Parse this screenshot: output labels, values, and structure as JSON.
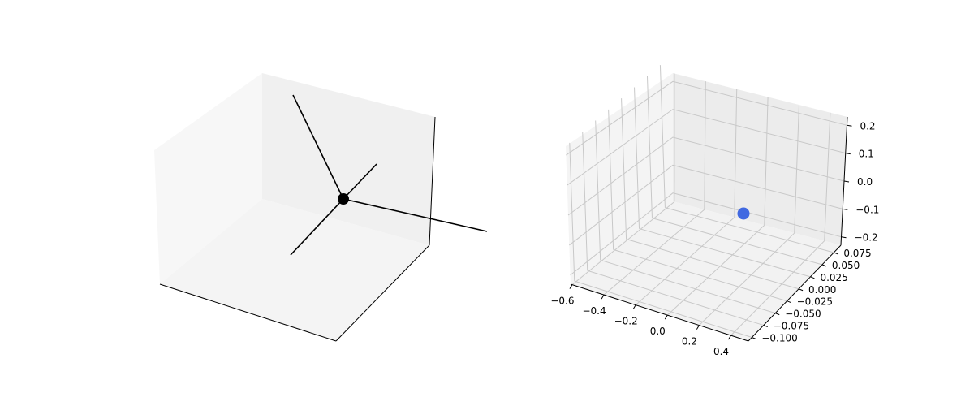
{
  "chart_data": [
    {
      "type": "3d-lines",
      "axes_visible": false,
      "grid": false,
      "lines": [
        {
          "name": "",
          "from": [
            0,
            0,
            0
          ],
          "to": [
            -1,
            0,
            0
          ]
        },
        {
          "name": "",
          "from": [
            0,
            0,
            0
          ],
          "to": [
            0,
            1,
            0
          ]
        },
        {
          "name": "",
          "from": [
            0,
            0,
            0
          ],
          "to": [
            0,
            -1,
            0
          ]
        },
        {
          "name": "",
          "from": [
            0,
            0,
            0
          ],
          "to": [
            0,
            0,
            1
          ]
        }
      ],
      "points": [
        {
          "x": 0,
          "y": 0,
          "z": 0
        }
      ],
      "colors": {
        "lines": "#000000",
        "point": "#000000",
        "pane": "#f2f2f2"
      }
    },
    {
      "type": "scatter3d",
      "grid": true,
      "x_ticks": [
        "−0.6",
        "−0.4",
        "−0.2",
        "0.0",
        "0.2",
        "0.4"
      ],
      "y_ticks": [
        "−0.100",
        "−0.075",
        "−0.050",
        "−0.025",
        "0.000",
        "0.025",
        "0.050",
        "0.075"
      ],
      "z_ticks": [
        "−0.2",
        "−0.1",
        "0.0",
        "0.1",
        "0.2"
      ],
      "points": [
        {
          "x": 0.0,
          "y": 0.0,
          "z": -0.11
        }
      ],
      "colors": {
        "point": "#4169e1",
        "pane": "#f2f2f2",
        "grid": "#c8c8c8"
      }
    }
  ]
}
